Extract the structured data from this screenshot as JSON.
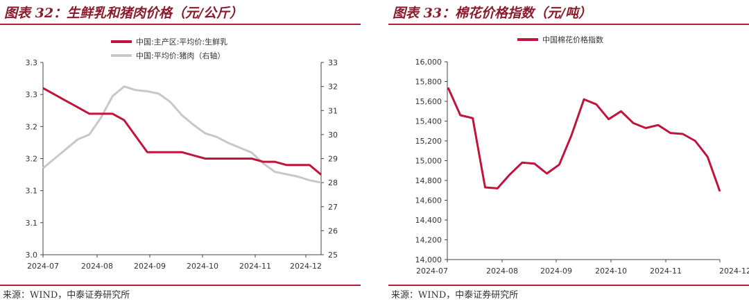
{
  "charts": {
    "left": {
      "title": "图表 32：生鲜乳和猪肉价格（元/公斤）",
      "source": "来源：WIND，中泰证券研究所",
      "chart_data": {
        "type": "line",
        "x_ticks": [
          "2024-07",
          "2024-08",
          "2024-09",
          "2024-10",
          "2024-11",
          "2024-12"
        ],
        "y_left_ticks": [
          "3.3",
          "3.3",
          "3.2",
          "3.2",
          "3.1",
          "3.1",
          "3.0"
        ],
        "y_right_ticks": [
          "33",
          "32",
          "31",
          "30",
          "29",
          "28",
          "27",
          "26",
          "25"
        ],
        "y_left_range": [
          3.0,
          3.3
        ],
        "y_right_range": [
          25,
          33
        ],
        "grid": false,
        "legend_position": "top-center",
        "series": [
          {
            "name": "中国:主产区:平均价:生鲜乳",
            "axis": "left",
            "color": "#c0143c",
            "values": [
              3.26,
              3.25,
              3.24,
              3.23,
              3.22,
              3.22,
              3.22,
              3.21,
              3.185,
              3.16,
              3.16,
              3.16,
              3.16,
              3.155,
              3.15,
              3.15,
              3.15,
              3.15,
              3.15,
              3.145,
              3.145,
              3.14,
              3.14,
              3.14,
              3.125
            ]
          },
          {
            "name": "中国:平均价:猪肉（右轴）",
            "axis": "right",
            "color": "#c8c8c8",
            "values": [
              28.6,
              29.0,
              29.4,
              29.8,
              30.0,
              30.7,
              31.6,
              32.0,
              31.85,
              31.8,
              31.7,
              31.35,
              30.8,
              30.4,
              30.05,
              29.9,
              29.65,
              29.45,
              29.25,
              28.8,
              28.45,
              28.35,
              28.25,
              28.1,
              28.0
            ]
          }
        ]
      }
    },
    "right": {
      "title": "图表 33：棉花价格指数（元/吨）",
      "source": "来源：WIND，中泰证券研究所",
      "chart_data": {
        "type": "line",
        "x_ticks": [
          "2024-07",
          "2024-08",
          "2024-09",
          "2024-10",
          "2024-11",
          "2024-12"
        ],
        "y_ticks": [
          "16,000",
          "15,800",
          "15,600",
          "15,400",
          "15,200",
          "15,000",
          "14,800",
          "14,600",
          "14,400",
          "14,200",
          "14,000"
        ],
        "y_range": [
          14000,
          16000
        ],
        "grid": false,
        "legend_position": "top-center",
        "series": [
          {
            "name": "中国棉花价格指数",
            "color": "#c0143c",
            "values": [
              15740,
              15460,
              15430,
              14730,
              14720,
              14860,
              14980,
              14970,
              14870,
              14960,
              15260,
              15620,
              15570,
              15420,
              15500,
              15380,
              15330,
              15360,
              15280,
              15270,
              15200,
              15040,
              14690
            ]
          }
        ]
      }
    }
  }
}
